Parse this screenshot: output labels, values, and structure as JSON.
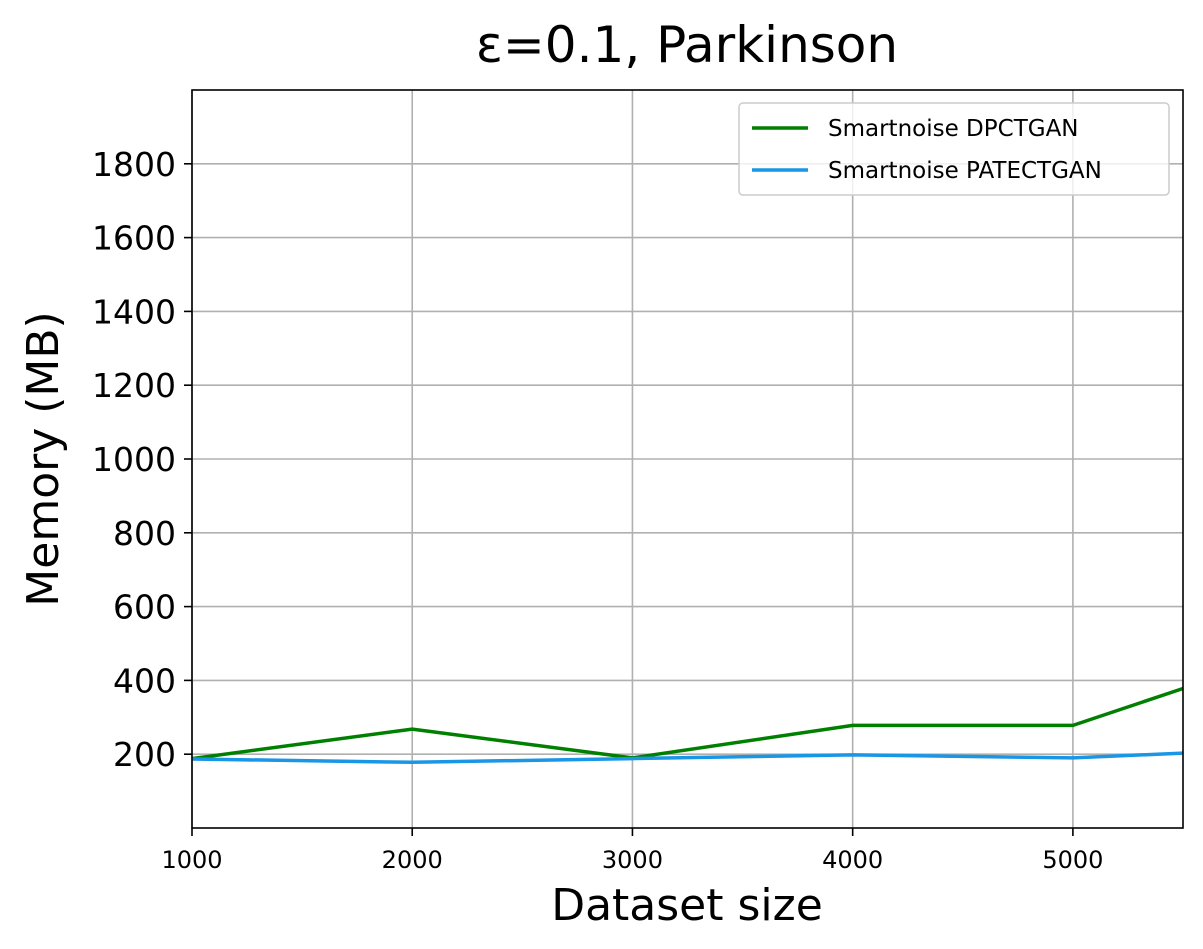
{
  "chart_data": {
    "type": "line",
    "title": "ε=0.1, Parkinson",
    "xlabel": "Dataset size",
    "ylabel": "Memory (MB)",
    "xlim": [
      1000,
      5500
    ],
    "ylim": [
      0,
      2000
    ],
    "xticks": [
      1000,
      2000,
      3000,
      4000,
      5000
    ],
    "yticks": [
      200,
      400,
      600,
      800,
      1000,
      1200,
      1400,
      1600,
      1800
    ],
    "grid": true,
    "legend_position": "top-right",
    "x": [
      1000,
      2000,
      3000,
      4000,
      5000,
      5500
    ],
    "series": [
      {
        "name": "Smartnoise DPCTGAN",
        "color": "#008000",
        "values": [
          188,
          268,
          190,
          278,
          278,
          378
        ]
      },
      {
        "name": "Smartnoise PATECTGAN",
        "color": "#1a96e6",
        "values": [
          187,
          178,
          188,
          198,
          190,
          203
        ]
      }
    ]
  }
}
